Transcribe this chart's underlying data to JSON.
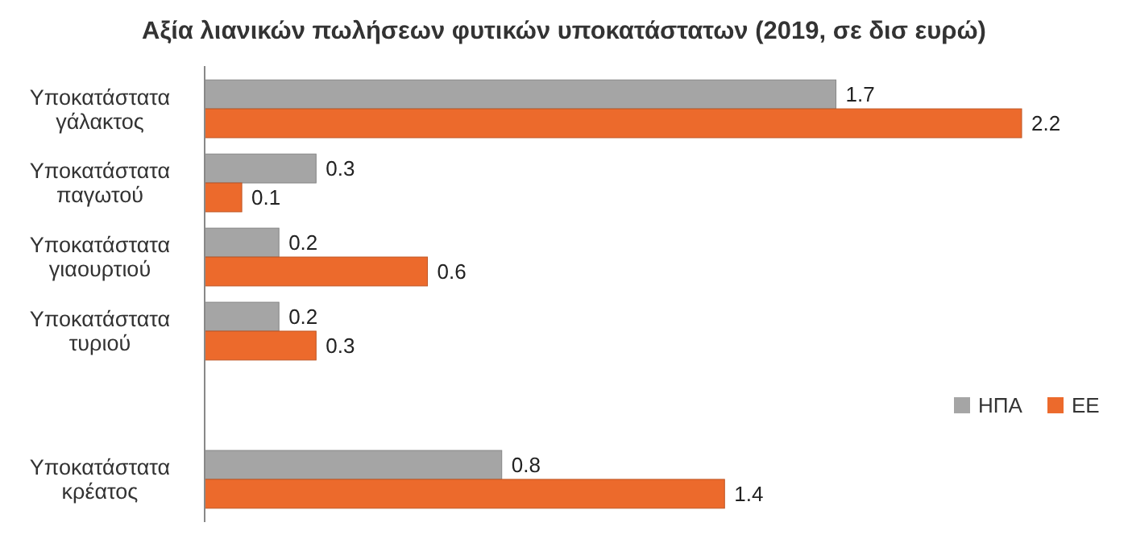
{
  "chart_data": {
    "type": "bar",
    "orientation": "horizontal",
    "title": "Αξία λιανικών πωλήσεων φυτικών υποκατάστατων (2019, σε δισ ευρώ)",
    "categories": [
      "Υποκατάστατα γάλακτος",
      "Υποκατάστατα παγωτού",
      "Υποκατάστατα γιαουρτιού",
      "Υποκατάστατα τυριού",
      null,
      "Υποκατάστατα κρέατος"
    ],
    "series": [
      {
        "name": "ΗΠΑ",
        "color": "#a5a5a5",
        "values": [
          1.7,
          0.3,
          0.2,
          0.2,
          null,
          0.8
        ]
      },
      {
        "name": "ΕΕ",
        "color": "#ec6a2c",
        "values": [
          2.2,
          0.1,
          0.6,
          0.3,
          null,
          1.4
        ]
      }
    ],
    "data_labels": true,
    "legend": "right"
  }
}
